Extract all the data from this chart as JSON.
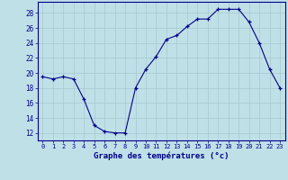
{
  "x": [
    0,
    1,
    2,
    3,
    4,
    5,
    6,
    7,
    8,
    9,
    10,
    11,
    12,
    13,
    14,
    15,
    16,
    17,
    18,
    19,
    20,
    21,
    22,
    23
  ],
  "y": [
    19.5,
    19.2,
    19.5,
    19.2,
    16.5,
    13.0,
    12.2,
    12.0,
    12.0,
    18.0,
    20.5,
    22.2,
    24.5,
    25.0,
    26.2,
    27.2,
    27.2,
    28.5,
    28.5,
    28.5,
    26.8,
    24.0,
    20.5,
    18.0
  ],
  "line_color": "#00008B",
  "marker": "+",
  "bg_color": "#C0E0E8",
  "grid_color": "#A8C8D0",
  "xlabel": "Graphe des températures (°c)",
  "ylabel_ticks": [
    12,
    14,
    16,
    18,
    20,
    22,
    24,
    26,
    28
  ],
  "ylim": [
    11,
    29.5
  ],
  "xlim": [
    -0.5,
    23.5
  ],
  "xticks": [
    0,
    1,
    2,
    3,
    4,
    5,
    6,
    7,
    8,
    9,
    10,
    11,
    12,
    13,
    14,
    15,
    16,
    17,
    18,
    19,
    20,
    21,
    22,
    23
  ]
}
